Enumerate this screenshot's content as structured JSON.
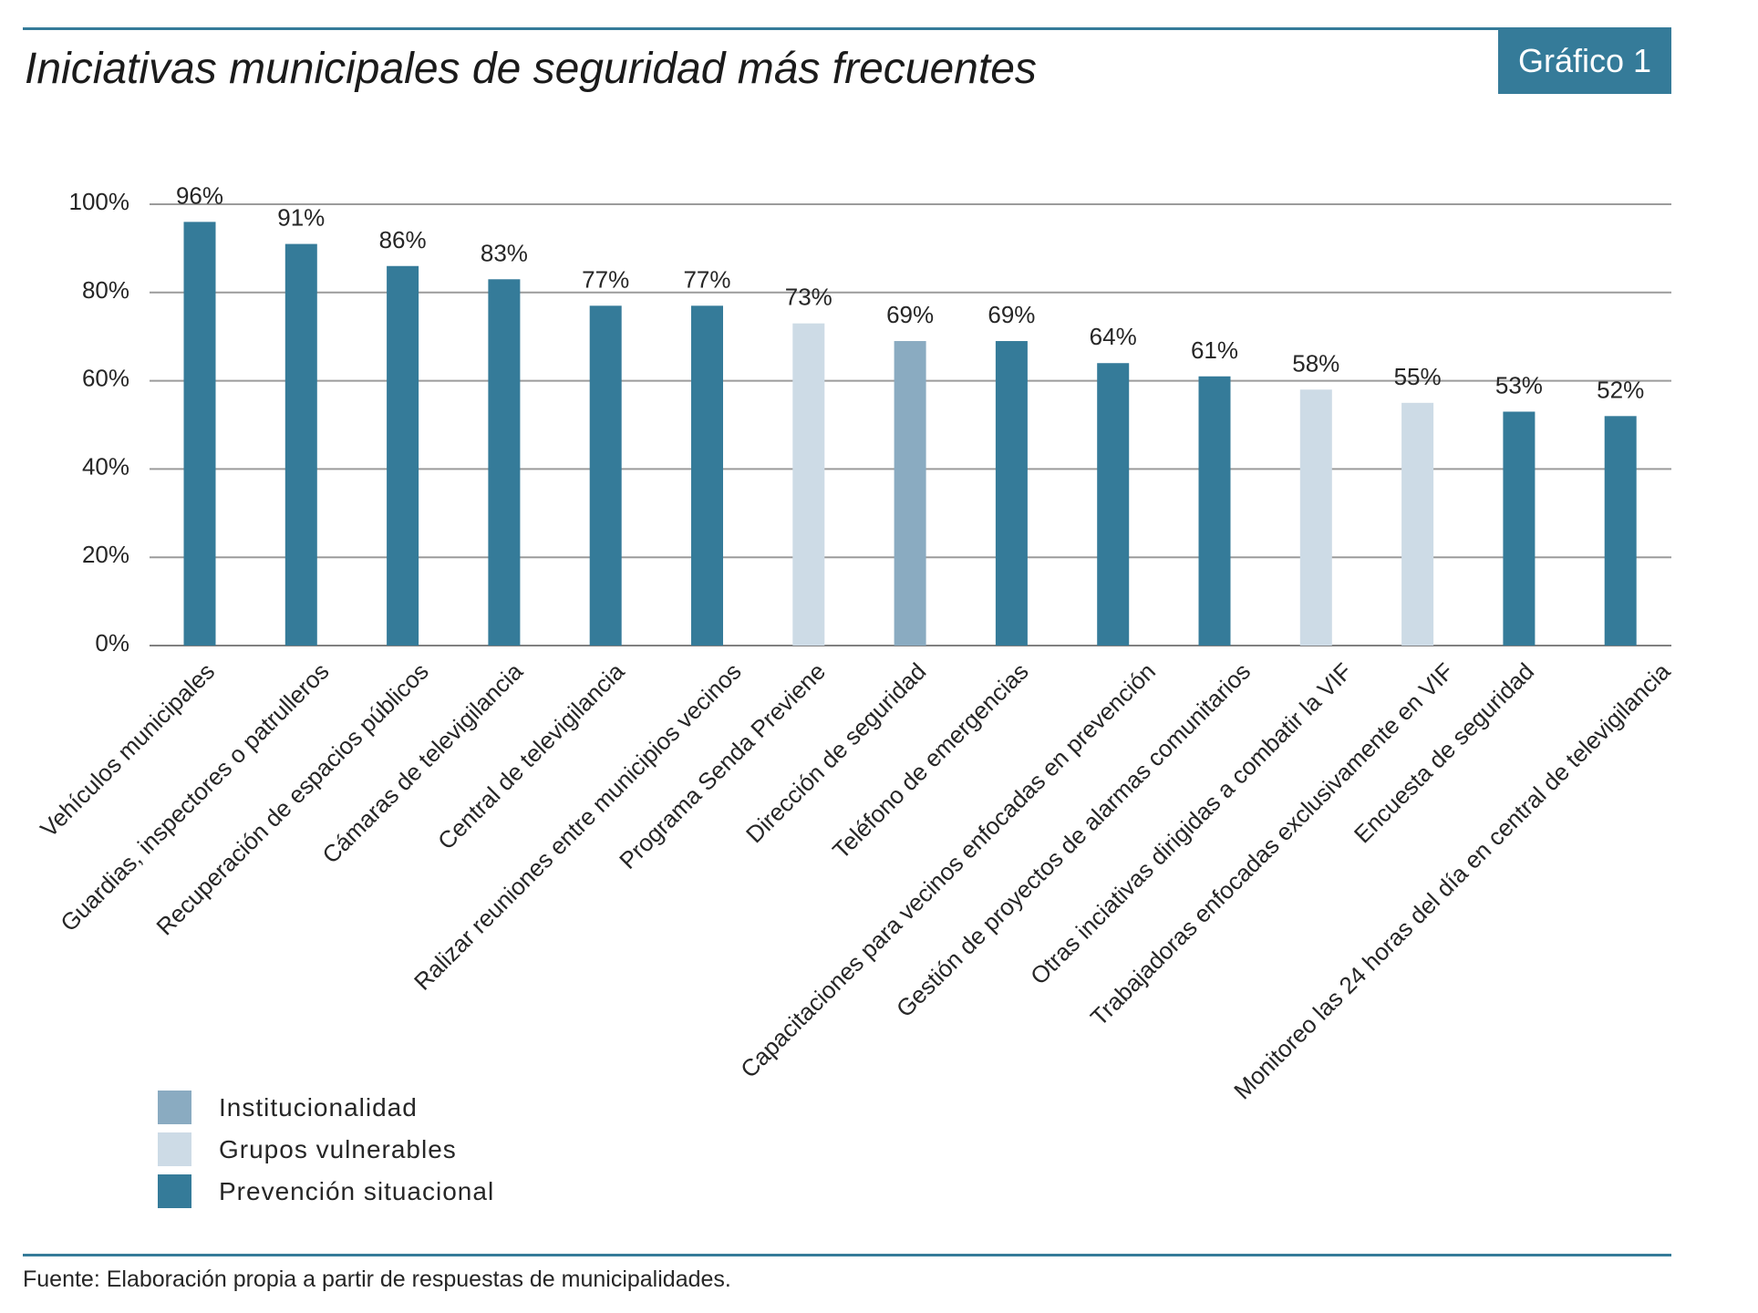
{
  "header": {
    "badge": "Gráfico 1"
  },
  "theme": {
    "accent": "#357b99",
    "gridline": "#9b9b9b",
    "axis_line": "#808080"
  },
  "chart_data": {
    "type": "bar",
    "title": "Iniciativas municipales de seguridad más frecuentes",
    "categories": [
      "Vehículos municipales",
      "Guardias, inspectores o patrulleros",
      "Recuperación de espacios públicos",
      "Cámaras de televigilancia",
      "Central de televigilancia",
      "Ralizar reuniones entre municipios vecinos",
      "Programa Senda Previene",
      "Dirección de seguridad",
      "Teléfono de emergencias",
      "Capacitaciones para vecinos enfocadas en prevención",
      "Gestión de proyectos de alarmas comunitarios",
      "Otras inciativas dirigidas a combatir la VIF",
      "Trabajadoras enfocadas exclusivamente en VIF",
      "Encuesta de seguridad",
      "Monitoreo las 24 horas del día en central de televigilancia"
    ],
    "values": [
      96,
      91,
      86,
      83,
      77,
      77,
      73,
      69,
      69,
      64,
      61,
      58,
      55,
      53,
      52
    ],
    "value_labels": [
      "96%",
      "91%",
      "86%",
      "83%",
      "77%",
      "77%",
      "73%",
      "69%",
      "69%",
      "64%",
      "61%",
      "58%",
      "55%",
      "53%",
      "52%"
    ],
    "bar_group": [
      2,
      2,
      2,
      2,
      2,
      2,
      1,
      0,
      2,
      2,
      2,
      1,
      1,
      2,
      2
    ],
    "ylim": [
      0,
      100
    ],
    "y_ticks": [
      0,
      20,
      40,
      60,
      80,
      100
    ],
    "y_tick_labels": [
      "0%",
      "20%",
      "40%",
      "60%",
      "80%",
      "100%"
    ],
    "grid": true,
    "legend": {
      "placement": "bottom-left",
      "items": [
        {
          "name": "Institucionalidad",
          "color": "#8aabc1"
        },
        {
          "name": "Grupos vulnerables",
          "color": "#cddbe6"
        },
        {
          "name": "Prevención situacional",
          "color": "#357b99"
        }
      ]
    }
  },
  "footer": {
    "source": "Fuente: Elaboración propia a partir de respuestas de municipalidades."
  }
}
